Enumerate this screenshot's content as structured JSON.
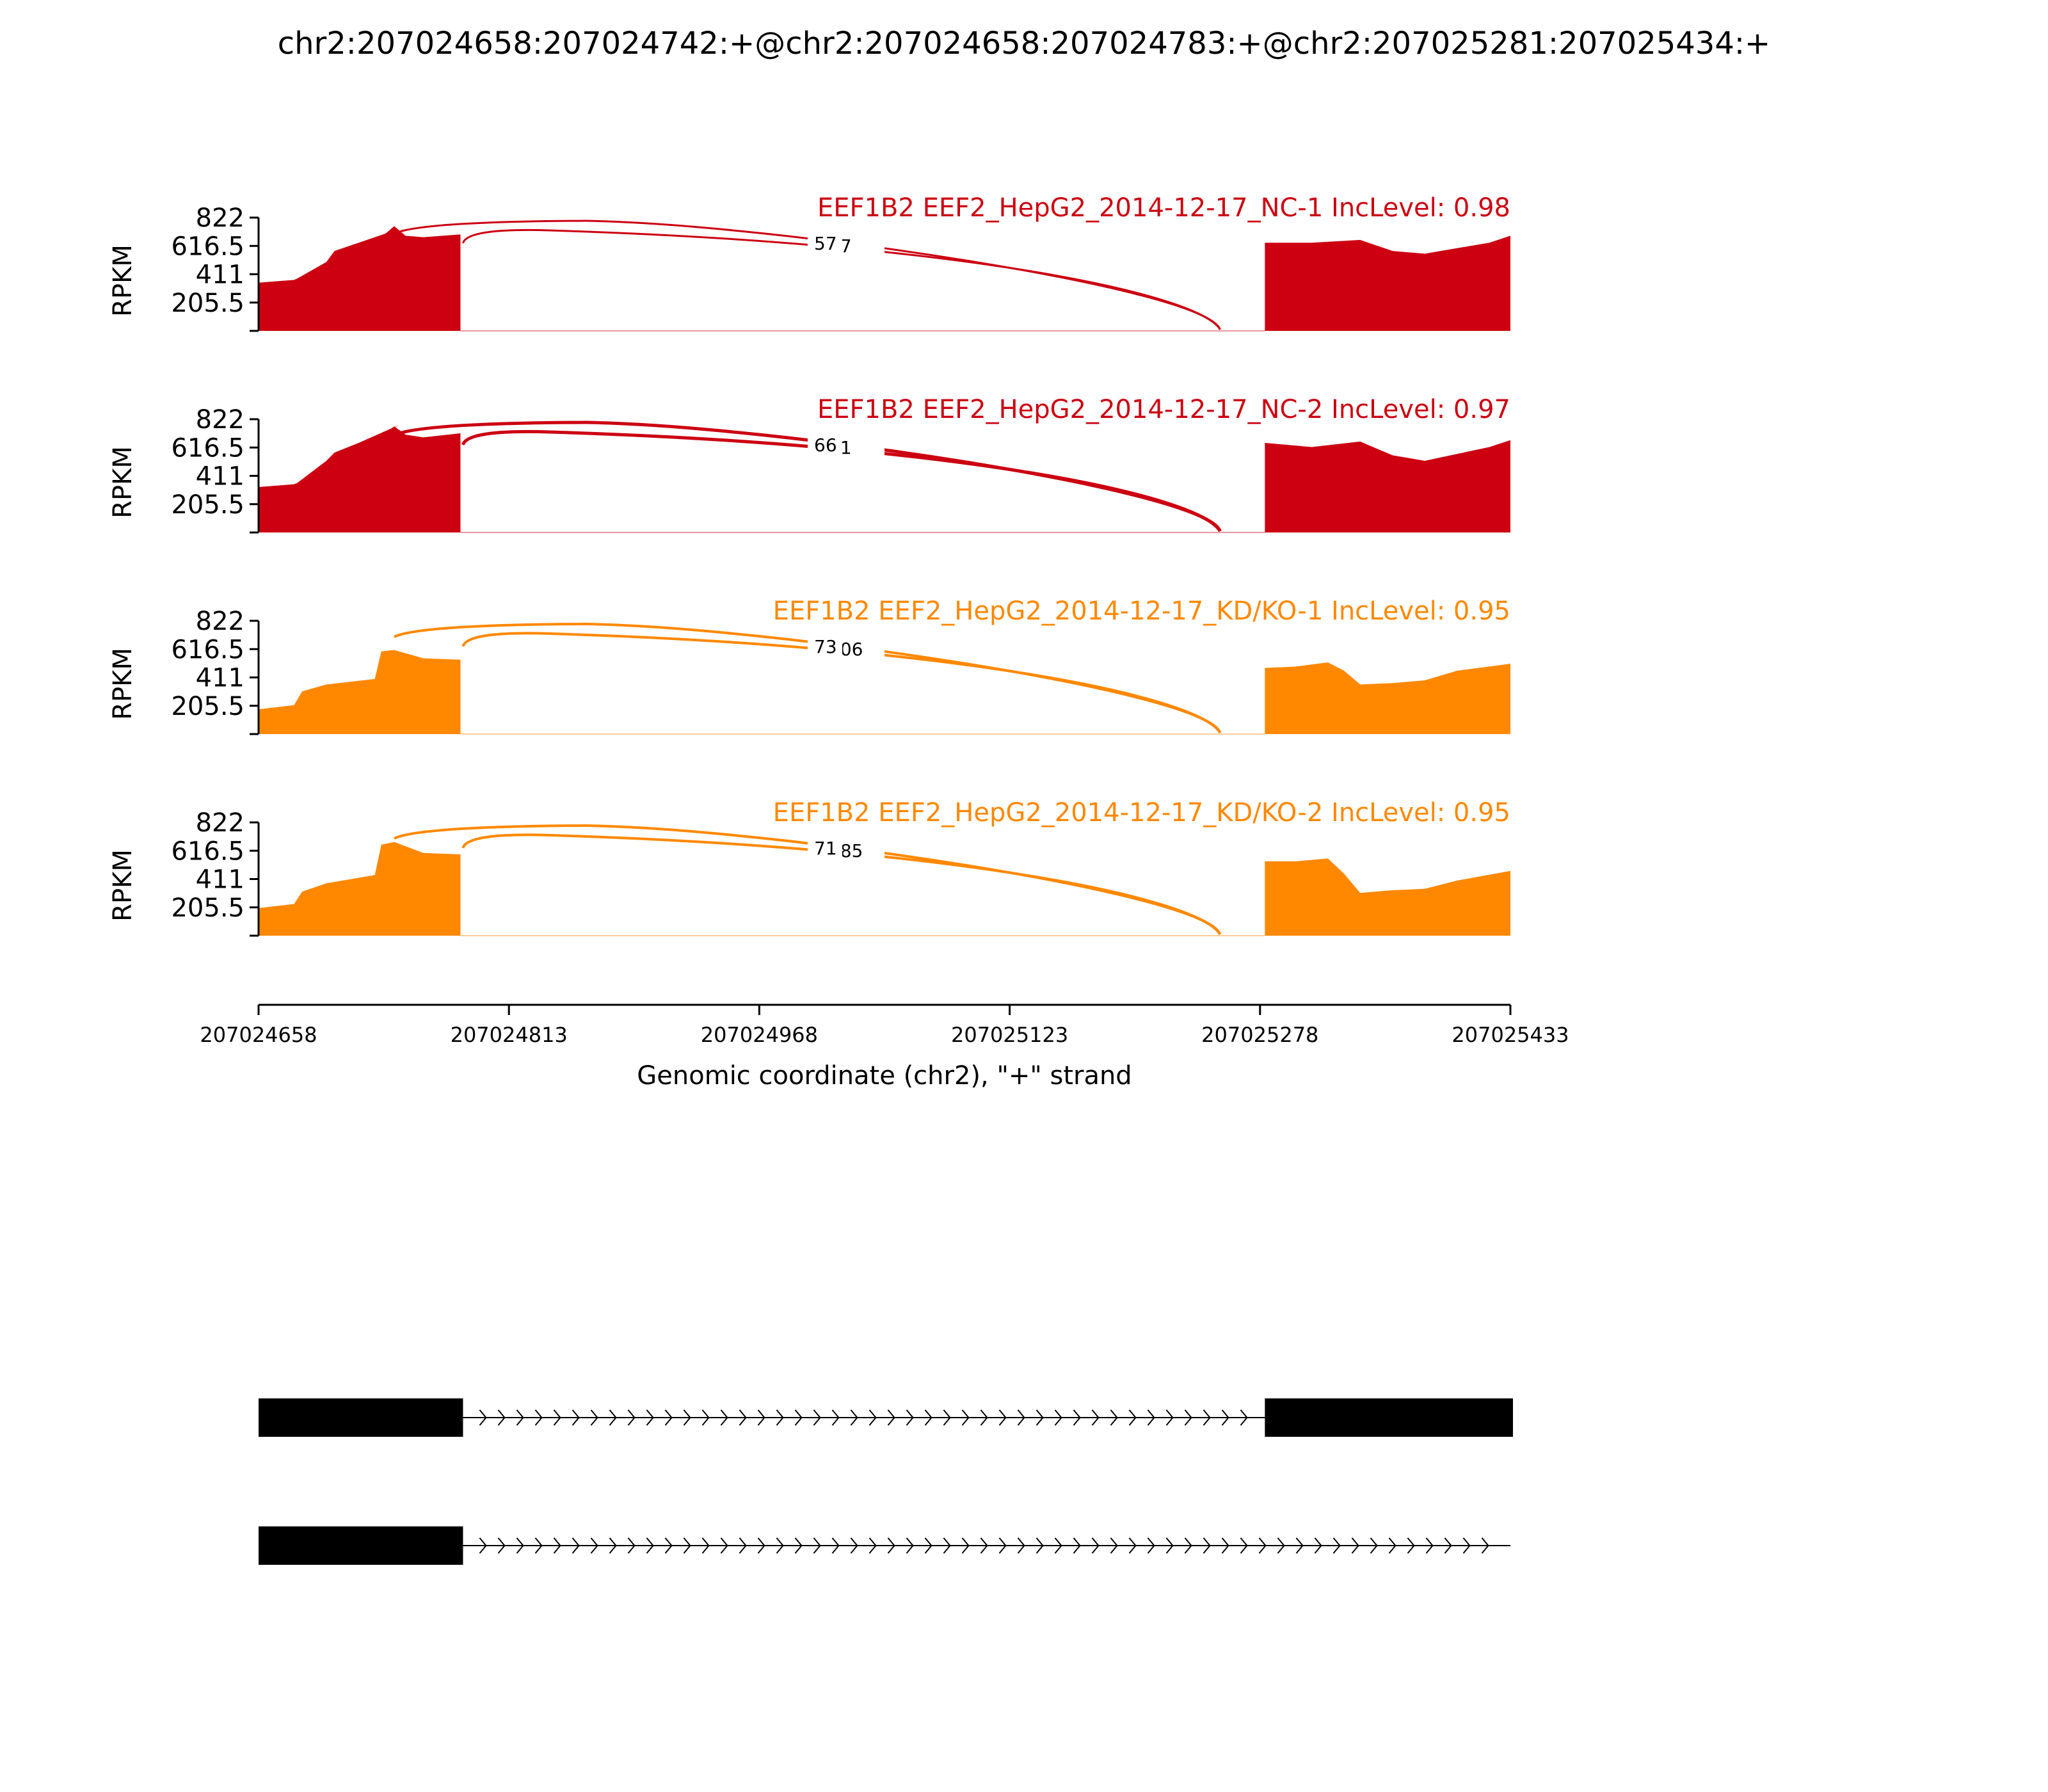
{
  "title": "chr2:207024658:207024742:+@chr2:207024658:207024783:+@chr2:207025281:207025434:+",
  "x_axis": {
    "label": "Genomic coordinate (chr2), \"+\" strand",
    "ticks": [
      "207024658",
      "207024813",
      "207024968",
      "207025123",
      "207025278",
      "207025433"
    ]
  },
  "chart_data": [
    {
      "type": "area",
      "title": "EEF1B2 EEF2_HepG2_2014-12-17_NC-1 IncLevel: 0.98",
      "color": "#cc0011",
      "ylabel": "RPKM",
      "ylim": [
        0,
        822
      ],
      "yticks": [
        "822",
        "616.5",
        "411",
        "205.5"
      ],
      "xlim": [
        207024658,
        207025433
      ],
      "coverage_x": [
        207024658,
        207024680,
        207024682,
        207024700,
        207024705,
        207024720,
        207024745,
        207024736,
        207024742,
        207024749,
        207024760,
        207024783,
        207025281,
        207025310,
        207025340,
        207025360,
        207025380,
        207025400,
        207025420,
        207025433
      ],
      "coverage_y": [
        350,
        370,
        380,
        500,
        580,
        640,
        740,
        700,
        760,
        690,
        680,
        700,
        640,
        640,
        660,
        580,
        560,
        600,
        640,
        690
      ],
      "exon_segments": [
        [
          207024658,
          207024783
        ],
        [
          207025281,
          207025433
        ]
      ],
      "junction_labels": [
        "57",
        "27"
      ]
    },
    {
      "type": "area",
      "title": "EEF1B2 EEF2_HepG2_2014-12-17_NC-2 IncLevel: 0.97",
      "color": "#cc0011",
      "ylabel": "RPKM",
      "ylim": [
        0,
        822
      ],
      "yticks": [
        "822",
        "616.5",
        "411",
        "205.5"
      ],
      "xlim": [
        207024658,
        207025433
      ],
      "coverage_x": [
        207024658,
        207024680,
        207024682,
        207024700,
        207024705,
        207024720,
        207024745,
        207024736,
        207024742,
        207024749,
        207024760,
        207024783,
        207025281,
        207025310,
        207025340,
        207025360,
        207025380,
        207025400,
        207025420,
        207025433
      ],
      "coverage_y": [
        330,
        350,
        360,
        520,
        580,
        650,
        780,
        720,
        770,
        710,
        690,
        720,
        650,
        620,
        660,
        560,
        520,
        570,
        620,
        670
      ],
      "exon_segments": [
        [
          207024658,
          207024783
        ],
        [
          207025281,
          207025433
        ]
      ],
      "junction_labels": [
        "66",
        "71"
      ]
    },
    {
      "type": "area",
      "title": "EEF1B2 EEF2_HepG2_2014-12-17_KD/KO-1 IncLevel: 0.95",
      "color": "#ff8800",
      "ylabel": "RPKM",
      "ylim": [
        0,
        822
      ],
      "yticks": [
        "822",
        "616.5",
        "411",
        "205.5"
      ],
      "xlim": [
        207024658,
        207025433
      ],
      "coverage_x": [
        207024658,
        207024680,
        207024685,
        207024700,
        207024730,
        207024734,
        207024742,
        207024760,
        207024783,
        207025281,
        207025300,
        207025320,
        207025330,
        207025340,
        207025360,
        207025380,
        207025400,
        207025433
      ],
      "coverage_y": [
        180,
        210,
        310,
        360,
        400,
        600,
        610,
        550,
        540,
        480,
        490,
        520,
        460,
        360,
        370,
        390,
        460,
        510
      ],
      "exon_segments": [
        [
          207024658,
          207024783
        ],
        [
          207025281,
          207025433
        ]
      ],
      "junction_labels": [
        "73",
        "306"
      ]
    },
    {
      "type": "area",
      "title": "EEF1B2 EEF2_HepG2_2014-12-17_KD/KO-2 IncLevel: 0.95",
      "color": "#ff8800",
      "ylabel": "RPKM",
      "ylim": [
        0,
        822
      ],
      "yticks": [
        "822",
        "616.5",
        "411",
        "205.5"
      ],
      "xlim": [
        207024658,
        207025433
      ],
      "coverage_x": [
        207024658,
        207024680,
        207024685,
        207024700,
        207024730,
        207024734,
        207024742,
        207024760,
        207024783,
        207025281,
        207025300,
        207025320,
        207025330,
        207025340,
        207025360,
        207025380,
        207025400,
        207025433
      ],
      "coverage_y": [
        200,
        230,
        320,
        380,
        440,
        660,
        680,
        600,
        590,
        540,
        540,
        560,
        450,
        310,
        330,
        340,
        400,
        470
      ],
      "exon_segments": [
        [
          207024658,
          207024783
        ],
        [
          207025281,
          207025433
        ]
      ],
      "junction_labels": [
        "71",
        "185"
      ]
    }
  ],
  "gene_models": [
    {
      "exons": [
        [
          207024658,
          207024783
        ],
        [
          207025281,
          207025433
        ]
      ],
      "thick_start": 207024742,
      "intron_end": 207025281
    },
    {
      "exons": [
        [
          207024658,
          207024783
        ]
      ],
      "thick_start": 207024742,
      "intron_end": 207025433
    }
  ]
}
